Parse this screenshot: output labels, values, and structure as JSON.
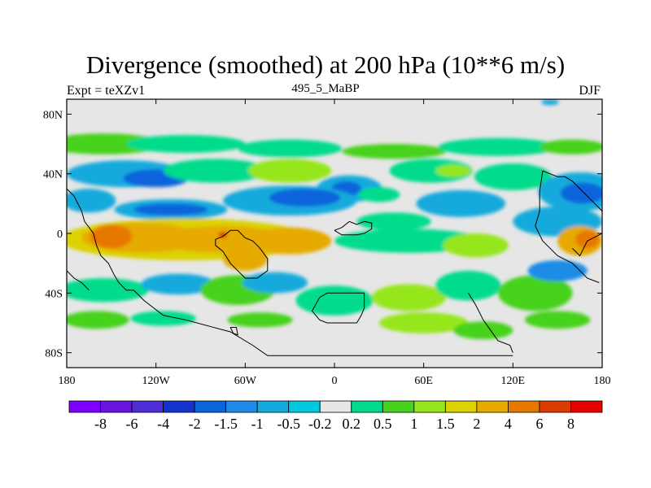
{
  "chart_data": {
    "type": "heatmap",
    "title": "Divergence (smoothed) at 200 hPa (10**6 m/s)",
    "subtitle": "495_5_MaBP",
    "left_string": "Expt = teXZv1",
    "right_string": "DJF",
    "xlim": [
      -180,
      180
    ],
    "ylim": [
      -90,
      90
    ],
    "x_ticks": [
      {
        "value": -180,
        "label": "180"
      },
      {
        "value": -120,
        "label": "120W"
      },
      {
        "value": -60,
        "label": "60W"
      },
      {
        "value": 0,
        "label": "0"
      },
      {
        "value": 60,
        "label": "60E"
      },
      {
        "value": 120,
        "label": "120E"
      },
      {
        "value": 180,
        "label": "180"
      }
    ],
    "y_ticks": [
      {
        "value": 80,
        "label": "80N"
      },
      {
        "value": 40,
        "label": "40N"
      },
      {
        "value": 0,
        "label": "0"
      },
      {
        "value": -40,
        "label": "40S"
      },
      {
        "value": -80,
        "label": "80S"
      }
    ],
    "colorbar": {
      "colors": [
        "#7f00ff",
        "#6a14e0",
        "#4e2ed6",
        "#1432cc",
        "#0a64dc",
        "#1e8ce6",
        "#14aadc",
        "#00c8e0",
        "#e6e6e6",
        "#00dc8c",
        "#46d21e",
        "#96e61e",
        "#dcd200",
        "#e6aa00",
        "#e67800",
        "#dc3c00",
        "#e60000"
      ],
      "labels": [
        "-8",
        "-6",
        "-4",
        "-2",
        "-1.5",
        "-1",
        "-0.5",
        "-0.2",
        "0.2",
        "0.5",
        "1",
        "1.5",
        "2",
        "4",
        "6",
        "8"
      ]
    },
    "blobs": [
      {
        "lon": -155,
        "lat": 60,
        "rx": 40,
        "ry": 7,
        "ci": 10
      },
      {
        "lon": -100,
        "lat": 60,
        "rx": 40,
        "ry": 6,
        "ci": 9
      },
      {
        "lon": -30,
        "lat": 57,
        "rx": 35,
        "ry": 6,
        "ci": 9
      },
      {
        "lon": 40,
        "lat": 55,
        "rx": 35,
        "ry": 5,
        "ci": 10
      },
      {
        "lon": 110,
        "lat": 58,
        "rx": 40,
        "ry": 6,
        "ci": 9
      },
      {
        "lon": 160,
        "lat": 58,
        "rx": 22,
        "ry": 5,
        "ci": 10
      },
      {
        "lon": 145,
        "lat": 88,
        "rx": 6,
        "ry": 2,
        "ci": 6
      },
      {
        "lon": -140,
        "lat": 40,
        "rx": 40,
        "ry": 9,
        "ci": 6
      },
      {
        "lon": -120,
        "lat": 37,
        "rx": 22,
        "ry": 6,
        "ci": 4
      },
      {
        "lon": -80,
        "lat": 42,
        "rx": 35,
        "ry": 8,
        "ci": 9
      },
      {
        "lon": -30,
        "lat": 42,
        "rx": 28,
        "ry": 8,
        "ci": 11
      },
      {
        "lon": 10,
        "lat": 30,
        "rx": 22,
        "ry": 9,
        "ci": 6
      },
      {
        "lon": 8,
        "lat": 30,
        "rx": 10,
        "ry": 5,
        "ci": 4
      },
      {
        "lon": 65,
        "lat": 42,
        "rx": 28,
        "ry": 8,
        "ci": 9
      },
      {
        "lon": 80,
        "lat": 42,
        "rx": 12,
        "ry": 4,
        "ci": 11
      },
      {
        "lon": 120,
        "lat": 38,
        "rx": 26,
        "ry": 9,
        "ci": 9
      },
      {
        "lon": 165,
        "lat": 28,
        "rx": 28,
        "ry": 13,
        "ci": 6
      },
      {
        "lon": 167,
        "lat": 27,
        "rx": 15,
        "ry": 7,
        "ci": 4
      },
      {
        "lon": -165,
        "lat": 22,
        "rx": 18,
        "ry": 8,
        "ci": 6
      },
      {
        "lon": -110,
        "lat": 16,
        "rx": 38,
        "ry": 7,
        "ci": 6
      },
      {
        "lon": -110,
        "lat": 16,
        "rx": 25,
        "ry": 4,
        "ci": 4
      },
      {
        "lon": -30,
        "lat": 22,
        "rx": 45,
        "ry": 10,
        "ci": 6
      },
      {
        "lon": -20,
        "lat": 24,
        "rx": 24,
        "ry": 6,
        "ci": 4
      },
      {
        "lon": 30,
        "lat": 26,
        "rx": 14,
        "ry": 5,
        "ci": 9
      },
      {
        "lon": 40,
        "lat": 8,
        "rx": 25,
        "ry": 6,
        "ci": 9
      },
      {
        "lon": 85,
        "lat": 20,
        "rx": 30,
        "ry": 9,
        "ci": 6
      },
      {
        "lon": 150,
        "lat": 8,
        "rx": 30,
        "ry": 10,
        "ci": 6
      },
      {
        "lon": -100,
        "lat": -4,
        "rx": 85,
        "ry": 14,
        "ci": 12
      },
      {
        "lon": -130,
        "lat": -3,
        "rx": 40,
        "ry": 10,
        "ci": 13
      },
      {
        "lon": -150,
        "lat": -2,
        "rx": 14,
        "ry": 8,
        "ci": 14
      },
      {
        "lon": -75,
        "lat": -4,
        "rx": 45,
        "ry": 9,
        "ci": 13
      },
      {
        "lon": -30,
        "lat": -5,
        "rx": 28,
        "ry": 9,
        "ci": 13
      },
      {
        "lon": -75,
        "lat": -1,
        "rx": 3,
        "ry": 2,
        "ci": 15
      },
      {
        "lon": -60,
        "lat": -17,
        "rx": 15,
        "ry": 8,
        "ci": 13
      },
      {
        "lon": 50,
        "lat": -5,
        "rx": 50,
        "ry": 8,
        "ci": 9
      },
      {
        "lon": 95,
        "lat": -8,
        "rx": 22,
        "ry": 8,
        "ci": 11
      },
      {
        "lon": 165,
        "lat": -5,
        "rx": 15,
        "ry": 10,
        "ci": 13
      },
      {
        "lon": 170,
        "lat": -4,
        "rx": 8,
        "ry": 6,
        "ci": 14
      },
      {
        "lon": -155,
        "lat": -38,
        "rx": 30,
        "ry": 8,
        "ci": 9
      },
      {
        "lon": -105,
        "lat": -34,
        "rx": 25,
        "ry": 7,
        "ci": 6
      },
      {
        "lon": -65,
        "lat": -38,
        "rx": 25,
        "ry": 10,
        "ci": 10
      },
      {
        "lon": -40,
        "lat": -33,
        "rx": 22,
        "ry": 7,
        "ci": 6
      },
      {
        "lon": 0,
        "lat": -45,
        "rx": 26,
        "ry": 10,
        "ci": 9
      },
      {
        "lon": 50,
        "lat": -43,
        "rx": 25,
        "ry": 9,
        "ci": 11
      },
      {
        "lon": 90,
        "lat": -35,
        "rx": 22,
        "ry": 10,
        "ci": 9
      },
      {
        "lon": 135,
        "lat": -40,
        "rx": 25,
        "ry": 12,
        "ci": 10
      },
      {
        "lon": 150,
        "lat": -25,
        "rx": 20,
        "ry": 7,
        "ci": 5
      },
      {
        "lon": -160,
        "lat": -58,
        "rx": 22,
        "ry": 6,
        "ci": 10
      },
      {
        "lon": -115,
        "lat": -57,
        "rx": 22,
        "ry": 5,
        "ci": 9
      },
      {
        "lon": -50,
        "lat": -58,
        "rx": 22,
        "ry": 5,
        "ci": 10
      },
      {
        "lon": 60,
        "lat": -60,
        "rx": 30,
        "ry": 7,
        "ci": 11
      },
      {
        "lon": 100,
        "lat": -65,
        "rx": 20,
        "ry": 6,
        "ci": 10
      },
      {
        "lon": 150,
        "lat": -58,
        "rx": 22,
        "ry": 6,
        "ci": 10
      }
    ],
    "coastlines": [
      [
        [
          -180,
          30
        ],
        [
          -175,
          25
        ],
        [
          -170,
          15
        ],
        [
          -168,
          8
        ],
        [
          -162,
          0
        ],
        [
          -160,
          -8
        ],
        [
          -157,
          -15
        ],
        [
          -152,
          -20
        ],
        [
          -148,
          -28
        ],
        [
          -145,
          -33
        ],
        [
          -140,
          -38
        ],
        [
          -135,
          -38
        ],
        [
          -128,
          -45
        ],
        [
          -115,
          -55
        ],
        [
          -100,
          -58
        ],
        [
          -85,
          -62
        ],
        [
          -70,
          -66
        ],
        [
          -60,
          -72
        ],
        [
          -55,
          -75
        ],
        [
          -45,
          -82
        ],
        [
          -20,
          -82
        ],
        [
          0,
          -82
        ],
        [
          40,
          -82
        ],
        [
          80,
          -82
        ],
        [
          100,
          -82
        ],
        [
          120,
          -82
        ]
      ],
      [
        [
          -75,
          -2
        ],
        [
          -70,
          2
        ],
        [
          -65,
          2
        ],
        [
          -60,
          -3
        ],
        [
          -55,
          -5
        ],
        [
          -50,
          -10
        ],
        [
          -45,
          -17
        ],
        [
          -45,
          -25
        ],
        [
          -52,
          -30
        ],
        [
          -60,
          -30
        ],
        [
          -65,
          -25
        ],
        [
          -70,
          -20
        ],
        [
          -75,
          -12
        ],
        [
          -80,
          -8
        ],
        [
          -80,
          -4
        ],
        [
          -75,
          -2
        ]
      ],
      [
        [
          -5,
          -40
        ],
        [
          -10,
          -43
        ],
        [
          -15,
          -52
        ],
        [
          -10,
          -58
        ],
        [
          -5,
          -60
        ],
        [
          5,
          -60
        ],
        [
          15,
          -60
        ],
        [
          18,
          -55
        ],
        [
          20,
          -50
        ],
        [
          20,
          -40
        ],
        [
          5,
          -40
        ],
        [
          -5,
          -40
        ]
      ],
      [
        [
          0,
          2
        ],
        [
          5,
          4
        ],
        [
          10,
          8
        ],
        [
          15,
          6
        ],
        [
          20,
          8
        ],
        [
          25,
          7
        ],
        [
          25,
          3
        ],
        [
          20,
          0
        ],
        [
          15,
          -1
        ],
        [
          5,
          -1
        ],
        [
          0,
          2
        ]
      ],
      [
        [
          90,
          -40
        ],
        [
          95,
          -48
        ],
        [
          100,
          -58
        ],
        [
          105,
          -65
        ],
        [
          110,
          -72
        ],
        [
          118,
          -75
        ],
        [
          120,
          -80
        ]
      ],
      [
        [
          140,
          42
        ],
        [
          145,
          40
        ],
        [
          150,
          38
        ],
        [
          155,
          38
        ],
        [
          160,
          35
        ],
        [
          165,
          30
        ],
        [
          170,
          25
        ],
        [
          175,
          20
        ],
        [
          180,
          15
        ]
      ],
      [
        [
          140,
          42
        ],
        [
          138,
          28
        ],
        [
          138,
          15
        ],
        [
          135,
          5
        ],
        [
          140,
          -5
        ],
        [
          145,
          -10
        ],
        [
          150,
          -15
        ],
        [
          160,
          -20
        ],
        [
          165,
          -25
        ],
        [
          170,
          -30
        ],
        [
          178,
          -33
        ]
      ],
      [
        [
          -180,
          -25
        ],
        [
          -175,
          -30
        ],
        [
          -170,
          -33
        ],
        [
          -165,
          -38
        ]
      ],
      [
        [
          -70,
          -63
        ],
        [
          -68,
          -67
        ],
        [
          -65,
          -68
        ],
        [
          -66,
          -63
        ],
        [
          -70,
          -63
        ]
      ],
      [
        [
          160,
          -10
        ],
        [
          165,
          -15
        ],
        [
          170,
          -5
        ],
        [
          180,
          0
        ]
      ]
    ]
  }
}
